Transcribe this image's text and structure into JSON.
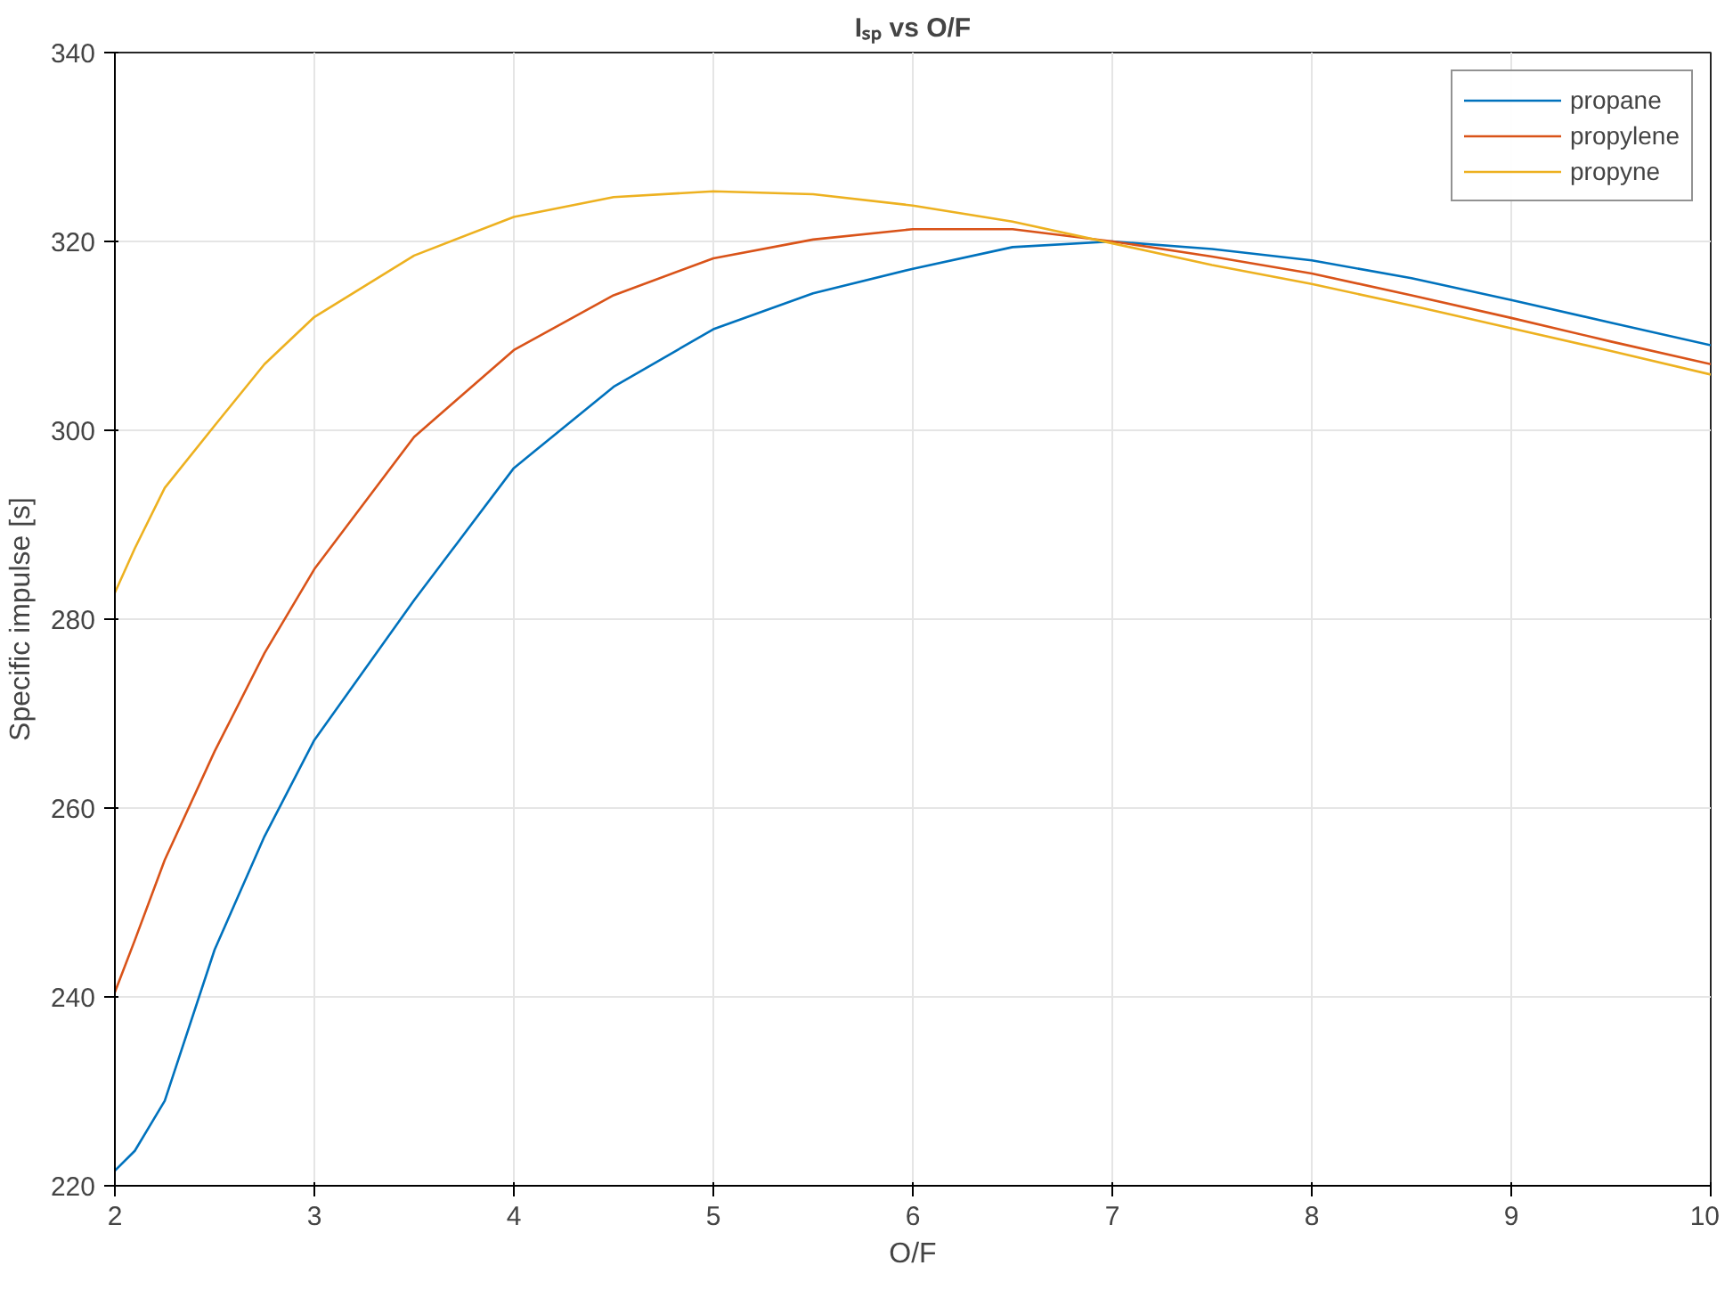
{
  "chart_data": {
    "type": "line",
    "title": "Iₛₚ vs O/F",
    "xlabel": "O/F",
    "ylabel": "Specific impulse [s]",
    "xlim": [
      2,
      10
    ],
    "ylim": [
      220,
      340
    ],
    "xticks": [
      2,
      3,
      4,
      5,
      6,
      7,
      8,
      9,
      10
    ],
    "yticks": [
      220,
      240,
      260,
      280,
      300,
      320,
      340
    ],
    "grid": true,
    "legend": "top right",
    "x": [
      2,
      2.1,
      2.25,
      2.5,
      2.75,
      3,
      3.5,
      4,
      4.5,
      5,
      5.5,
      6,
      6.5,
      7,
      7.5,
      8,
      8.5,
      9,
      9.5,
      10
    ],
    "series": [
      {
        "name": "propane",
        "color": "#0072bd",
        "values": [
          221.6,
          223.7,
          229,
          245,
          257,
          267.2,
          282,
          296,
          304.6,
          310.7,
          314.5,
          317.1,
          319.4,
          320,
          319.2,
          318,
          316.1,
          313.8,
          311.4,
          309
        ]
      },
      {
        "name": "propylene",
        "color": "#d95319",
        "values": [
          240.5,
          246,
          254.5,
          266,
          276.4,
          285.3,
          299.3,
          308.5,
          314.3,
          318.2,
          320.2,
          321.3,
          321.3,
          320,
          318.4,
          316.6,
          314.3,
          311.9,
          309.4,
          307
        ]
      },
      {
        "name": "propyne",
        "color": "#edb120",
        "values": [
          282.8,
          287.5,
          293.9,
          300.5,
          307,
          312,
          318.5,
          322.6,
          324.7,
          325.3,
          325,
          323.8,
          322.1,
          319.8,
          317.5,
          315.5,
          313.2,
          310.8,
          308.4,
          305.9
        ]
      }
    ]
  }
}
